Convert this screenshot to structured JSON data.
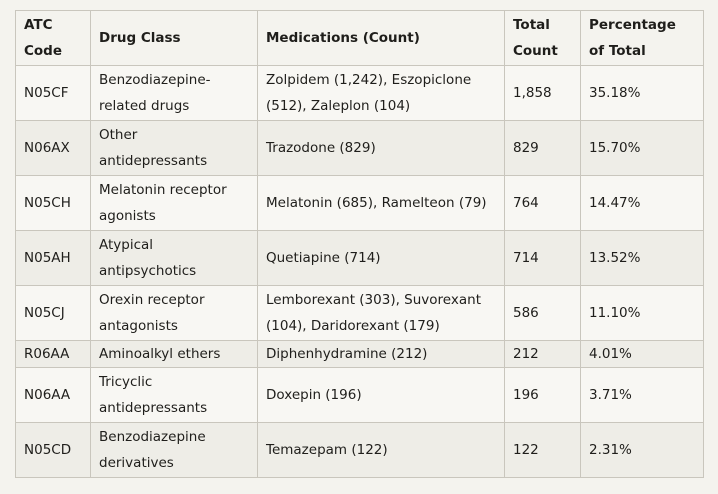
{
  "table": {
    "headers": {
      "atc": "ATC Code",
      "drug_class": "Drug Class",
      "medications": "Medications (Count)",
      "total": "Total Count",
      "percentage": "Percentage of Total"
    },
    "rows": [
      {
        "atc": "N05CF",
        "drug_class": "Benzodiazepine-related drugs",
        "medications": "Zolpidem (1,242), Eszopiclone (512), Zaleplon (104)",
        "total": "1,858",
        "percentage": "35.18%"
      },
      {
        "atc": "N06AX",
        "drug_class": "Other antidepressants",
        "medications": "Trazodone (829)",
        "total": "829",
        "percentage": "15.70%"
      },
      {
        "atc": "N05CH",
        "drug_class": "Melatonin receptor agonists",
        "medications": "Melatonin (685), Ramelteon (79)",
        "total": "764",
        "percentage": "14.47%"
      },
      {
        "atc": "N05AH",
        "drug_class": "Atypical antipsychotics",
        "medications": "Quetiapine (714)",
        "total": "714",
        "percentage": "13.52%"
      },
      {
        "atc": "N05CJ",
        "drug_class": "Orexin receptor antagonists",
        "medications": "Lemborexant (303), Suvorexant (104), Daridorexant (179)",
        "total": "586",
        "percentage": "11.10%"
      },
      {
        "atc": "R06AA",
        "drug_class": "Aminoalkyl ethers",
        "medications": "Diphenhydramine (212)",
        "total": "212",
        "percentage": "4.01%"
      },
      {
        "atc": "N06AA",
        "drug_class": "Tricyclic antidepressants",
        "medications": "Doxepin (196)",
        "total": "196",
        "percentage": "3.71%"
      },
      {
        "atc": "N05CD",
        "drug_class": "Benzodiazepine derivatives",
        "medications": "Temazepam (122)",
        "total": "122",
        "percentage": "2.31%"
      }
    ]
  }
}
